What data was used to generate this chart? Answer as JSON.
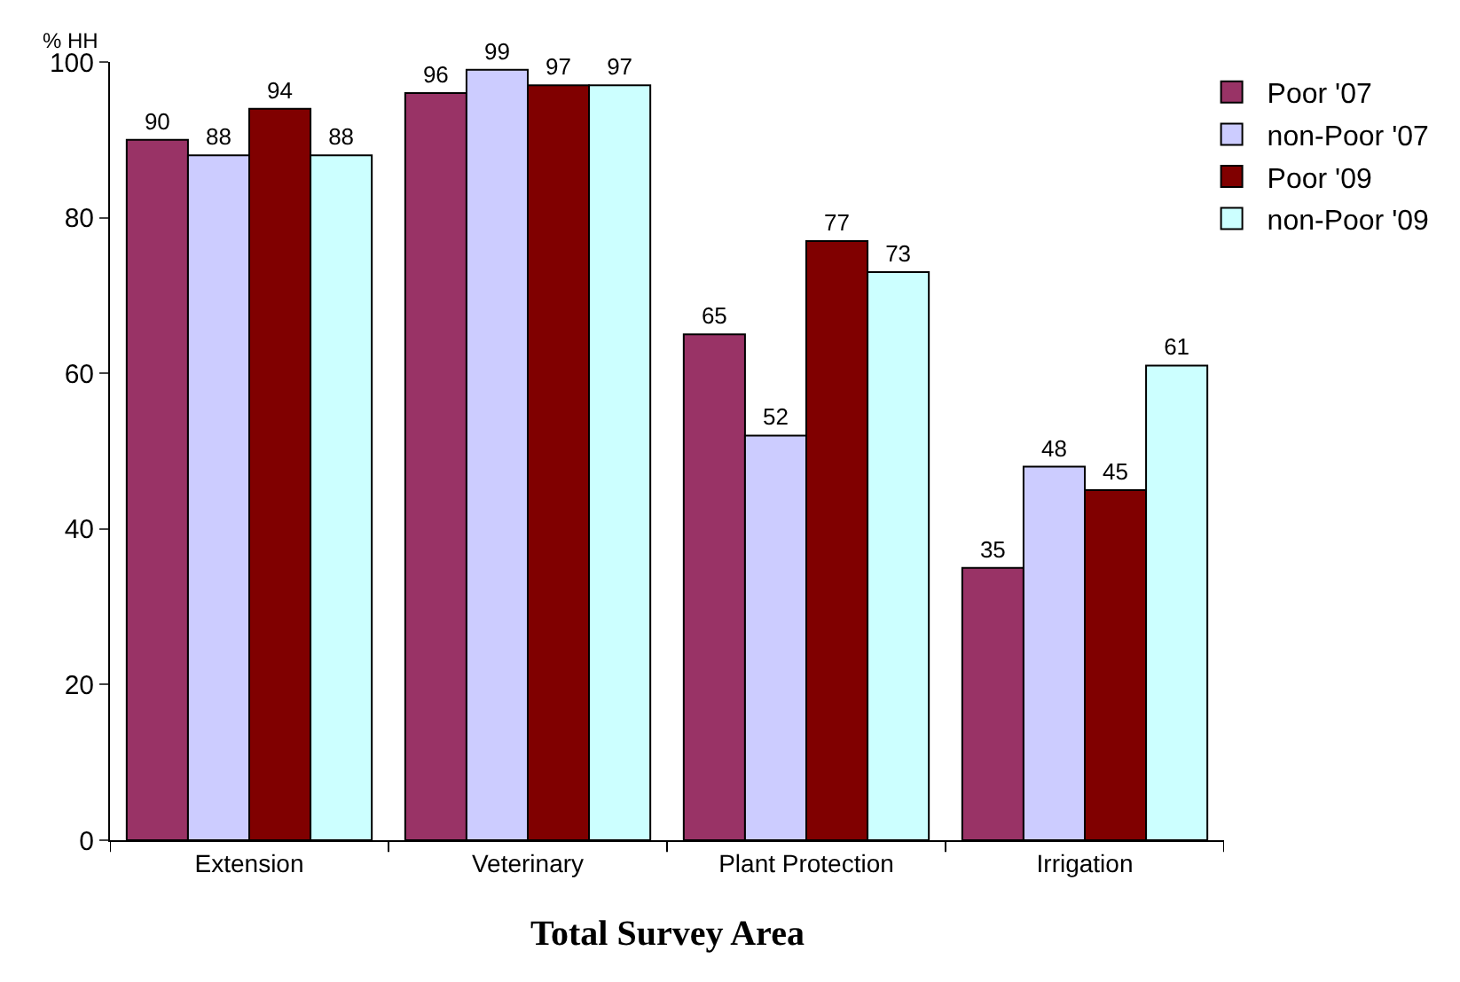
{
  "chart_data": {
    "type": "bar",
    "title": "Total Survey Area",
    "ylabel": "% HH",
    "categories": [
      "Extension",
      "Veterinary",
      "Plant Protection",
      "Irrigation"
    ],
    "series": [
      {
        "name": "Poor '07",
        "color": "#993366",
        "values": [
          90,
          96,
          65,
          35
        ]
      },
      {
        "name": "non-Poor '07",
        "color": "#ccccff",
        "values": [
          88,
          99,
          52,
          48
        ]
      },
      {
        "name": "Poor '09",
        "color": "#800000",
        "values": [
          94,
          97,
          77,
          45
        ]
      },
      {
        "name": "non-Poor '09",
        "color": "#ccffff",
        "values": [
          88,
          97,
          73,
          61
        ]
      }
    ],
    "ylim": [
      0,
      100
    ],
    "yticks": [
      0,
      20,
      40,
      60,
      80,
      100
    ],
    "data_labels": true,
    "grid": false,
    "legend": "top right"
  }
}
